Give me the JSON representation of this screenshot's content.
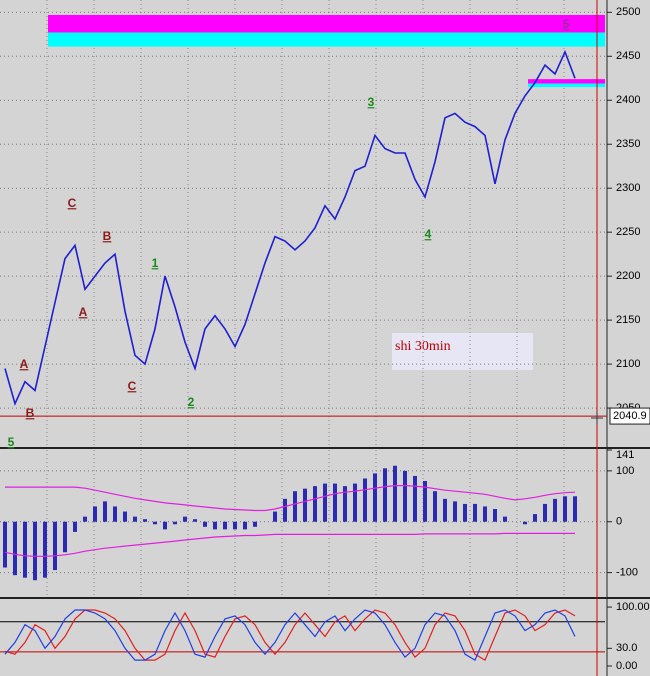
{
  "chart_data": [
    {
      "type": "line",
      "x": [
        0,
        1,
        2,
        3,
        4,
        5,
        6,
        7,
        8,
        9,
        10,
        11,
        12,
        13,
        14,
        15,
        16,
        17,
        18,
        19,
        20,
        21,
        22,
        23,
        24,
        25,
        26,
        27,
        28,
        29,
        30,
        31,
        32,
        33,
        34,
        35,
        36,
        37,
        38,
        39,
        40,
        41,
        42,
        43,
        44,
        45,
        46,
        47,
        48,
        49,
        50,
        51,
        52,
        53,
        54,
        55,
        56,
        57
      ],
      "values": [
        2095,
        2055,
        2080,
        2070,
        2120,
        2170,
        2220,
        2235,
        2185,
        2200,
        2215,
        2225,
        2160,
        2110,
        2100,
        2140,
        2200,
        2165,
        2125,
        2095,
        2140,
        2155,
        2140,
        2120,
        2145,
        2180,
        2215,
        2245,
        2240,
        2230,
        2240,
        2255,
        2280,
        2265,
        2290,
        2320,
        2325,
        2360,
        2345,
        2340,
        2340,
        2310,
        2290,
        2330,
        2380,
        2385,
        2375,
        2370,
        2360,
        2305,
        2355,
        2385,
        2405,
        2420,
        2440,
        2430,
        2455,
        2425
      ],
      "color": "#1e1ed2",
      "xlim": [
        -0.5,
        60
      ],
      "ylim": [
        2008,
        2514
      ],
      "yticks": [
        2050,
        2100,
        2150,
        2200,
        2250,
        2300,
        2350,
        2400,
        2450,
        2500
      ],
      "grid": true,
      "bands": [
        {
          "from": 2477,
          "to": 2497,
          "x_from": 4.3,
          "color": "#ff00ff"
        },
        {
          "from": 2461,
          "to": 2477,
          "x_from": 4.3,
          "color": "#00ffff"
        },
        {
          "from": 2419,
          "to": 2424,
          "x_from": 52.3,
          "color": "#ff00ff"
        },
        {
          "from": 2415,
          "to": 2419,
          "x_from": 52.3,
          "color": "#00ffff"
        }
      ],
      "level": {
        "value": 2040.9,
        "color": "#c00000"
      },
      "annotation": "shi 30min",
      "wave_labels": [
        {
          "text": "5",
          "color": "#9b2aa0"
        },
        {
          "text": "3",
          "color": "#1a8a1a"
        },
        {
          "text": "C",
          "color": "#8b1a1a"
        },
        {
          "text": "B",
          "color": "#8b1a1a"
        },
        {
          "text": "A",
          "color": "#8b1a1a"
        },
        {
          "text": "1",
          "color": "#1a8a1a"
        },
        {
          "text": "C",
          "color": "#8b1a1a"
        },
        {
          "text": "2",
          "color": "#1a8a1a"
        },
        {
          "text": "4",
          "color": "#1a8a1a"
        },
        {
          "text": "A",
          "color": "#8b1a1a"
        },
        {
          "text": "B",
          "color": "#8b1a1a"
        },
        {
          "text": "5",
          "color": "#1a8a1a"
        }
      ]
    },
    {
      "type": "bar",
      "x": [
        0,
        1,
        2,
        3,
        4,
        5,
        6,
        7,
        8,
        9,
        10,
        11,
        12,
        13,
        14,
        15,
        16,
        17,
        18,
        19,
        20,
        21,
        22,
        23,
        24,
        25,
        26,
        27,
        28,
        29,
        30,
        31,
        32,
        33,
        34,
        35,
        36,
        37,
        38,
        39,
        40,
        41,
        42,
        43,
        44,
        45,
        46,
        47,
        48,
        49,
        50,
        51,
        52,
        53,
        54,
        55,
        56,
        57
      ],
      "values": [
        -90,
        -105,
        -110,
        -115,
        -110,
        -95,
        -60,
        -20,
        10,
        30,
        40,
        30,
        20,
        10,
        5,
        -5,
        -15,
        -5,
        10,
        5,
        -10,
        -15,
        -15,
        -15,
        -15,
        -10,
        0,
        20,
        45,
        60,
        65,
        70,
        75,
        75,
        70,
        75,
        85,
        95,
        105,
        110,
        100,
        90,
        80,
        60,
        45,
        40,
        35,
        35,
        30,
        25,
        10,
        0,
        -5,
        15,
        35,
        45,
        50,
        50
      ],
      "color": "#2a2ab4",
      "series": [
        {
          "color": "#e020e0",
          "values": [
            68,
            68,
            68,
            68,
            68,
            68,
            68,
            68,
            66,
            62,
            58,
            54,
            50,
            46,
            43,
            40,
            37,
            35,
            33,
            31,
            29,
            27,
            25,
            24,
            23,
            22,
            22,
            25,
            30,
            35,
            40,
            45,
            50,
            55,
            58,
            60,
            63,
            66,
            69,
            71,
            71,
            70,
            68,
            65,
            62,
            60,
            58,
            56,
            54,
            50,
            46,
            43,
            45,
            48,
            52,
            55,
            57,
            58
          ]
        },
        {
          "color": "#e020e0",
          "values": [
            -60,
            -64,
            -67,
            -68,
            -68,
            -67,
            -65,
            -62,
            -58,
            -55,
            -52,
            -50,
            -48,
            -46,
            -44,
            -42,
            -40,
            -38,
            -36,
            -34,
            -32,
            -30,
            -29,
            -28,
            -27,
            -27,
            -26,
            -25,
            -25,
            -25,
            -25,
            -25,
            -25,
            -25,
            -25,
            -25,
            -25,
            -25,
            -25,
            -25,
            -25,
            -25,
            -24,
            -24,
            -24,
            -24,
            -24,
            -24,
            -24,
            -24,
            -23,
            -23,
            -23,
            -23,
            -23,
            -23,
            -23,
            -23
          ]
        }
      ],
      "xlim": [
        -0.5,
        60
      ],
      "ylim": [
        -146,
        141
      ],
      "yticks": [
        141,
        100,
        0,
        -100
      ],
      "grid": true
    },
    {
      "type": "line",
      "x": [
        0,
        1,
        2,
        3,
        4,
        5,
        6,
        7,
        8,
        9,
        10,
        11,
        12,
        13,
        14,
        15,
        16,
        17,
        18,
        19,
        20,
        21,
        22,
        23,
        24,
        25,
        26,
        27,
        28,
        29,
        30,
        31,
        32,
        33,
        34,
        35,
        36,
        37,
        38,
        39,
        40,
        41,
        42,
        43,
        44,
        45,
        46,
        47,
        48,
        49,
        50,
        51,
        52,
        53,
        54,
        55,
        56,
        57
      ],
      "series": [
        {
          "color": "#e02020",
          "values": [
            25,
            20,
            40,
            70,
            60,
            30,
            50,
            80,
            95,
            95,
            90,
            80,
            60,
            30,
            10,
            10,
            20,
            60,
            90,
            60,
            20,
            15,
            50,
            80,
            85,
            70,
            40,
            20,
            40,
            70,
            90,
            70,
            50,
            75,
            85,
            60,
            80,
            95,
            90,
            70,
            40,
            15,
            30,
            70,
            90,
            85,
            60,
            20,
            10,
            50,
            90,
            95,
            85,
            60,
            70,
            90,
            95,
            85
          ]
        },
        {
          "color": "#2040e0",
          "values": [
            20,
            40,
            70,
            60,
            30,
            50,
            80,
            95,
            95,
            90,
            80,
            60,
            30,
            10,
            10,
            20,
            60,
            90,
            60,
            20,
            15,
            50,
            80,
            85,
            70,
            40,
            20,
            40,
            70,
            90,
            70,
            50,
            75,
            85,
            60,
            80,
            95,
            90,
            70,
            40,
            15,
            30,
            70,
            90,
            85,
            60,
            20,
            10,
            50,
            90,
            95,
            85,
            60,
            70,
            90,
            95,
            85,
            50
          ]
        }
      ],
      "xlim": [
        -0.5,
        60
      ],
      "ylim": [
        -17,
        112
      ],
      "yticks": [
        {
          "value": 100,
          "label": "100.00"
        },
        {
          "value": 30,
          "label": "30.0"
        },
        {
          "value": 0,
          "label": "0.00"
        }
      ],
      "levels": [
        {
          "value": 75,
          "color": "#000000"
        },
        {
          "value": 24,
          "color": "#c00000"
        }
      ]
    }
  ]
}
